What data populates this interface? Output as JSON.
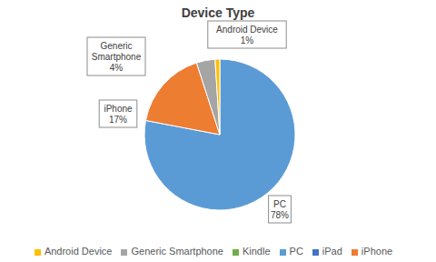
{
  "chart_data": {
    "type": "pie",
    "title": "Device Type",
    "categories": [
      "PC",
      "iPhone",
      "Generic Smartphone",
      "Android Device",
      "iPad",
      "Kindle"
    ],
    "values": [
      78,
      17,
      4,
      1,
      0,
      0
    ],
    "value_labels": [
      "78%",
      "17%",
      "4%",
      "1%",
      null,
      null
    ],
    "colors": [
      "#5b9bd5",
      "#ed7d31",
      "#a5a5a5",
      "#ffc000",
      "#4472c4",
      "#70ad47"
    ],
    "data_labels": true,
    "legend": "bottom"
  }
}
